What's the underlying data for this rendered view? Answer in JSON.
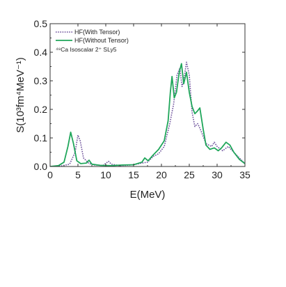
{
  "chart_data": {
    "type": "line",
    "xlabel": "E(MeV)",
    "ylabel": "S(10³fm⁴MeV⁻¹)",
    "xlim": [
      0,
      35
    ],
    "ylim": [
      0,
      0.5
    ],
    "xticks": [
      "0",
      "5",
      "10",
      "15",
      "20",
      "25",
      "30",
      "35"
    ],
    "yticks": [
      "0.0",
      "0.1",
      "0.2",
      "0.3",
      "0.4",
      "0.5"
    ],
    "legend_position": "top-left",
    "annotation": "⁴⁸Ca  Isoscalar 2⁺     SLy5",
    "series": [
      {
        "name": "HF(With Tensor)",
        "color": "#6b4f9a",
        "style": "dotted",
        "points": [
          [
            0,
            0.0
          ],
          [
            2,
            0.002
          ],
          [
            3.5,
            0.008
          ],
          [
            4.5,
            0.05
          ],
          [
            5.0,
            0.11
          ],
          [
            5.4,
            0.09
          ],
          [
            6.0,
            0.03
          ],
          [
            7.0,
            0.01
          ],
          [
            8.0,
            0.005
          ],
          [
            9.5,
            0.004
          ],
          [
            10.5,
            0.018
          ],
          [
            11.0,
            0.008
          ],
          [
            12.5,
            0.003
          ],
          [
            14.5,
            0.005
          ],
          [
            16.0,
            0.01
          ],
          [
            17.5,
            0.015
          ],
          [
            18.5,
            0.035
          ],
          [
            19.5,
            0.045
          ],
          [
            20.5,
            0.07
          ],
          [
            21.5,
            0.15
          ],
          [
            22.2,
            0.22
          ],
          [
            22.8,
            0.32
          ],
          [
            23.3,
            0.345
          ],
          [
            23.7,
            0.28
          ],
          [
            24.0,
            0.3
          ],
          [
            24.5,
            0.365
          ],
          [
            25.0,
            0.32
          ],
          [
            25.5,
            0.19
          ],
          [
            26.0,
            0.14
          ],
          [
            26.5,
            0.15
          ],
          [
            27.0,
            0.13
          ],
          [
            28.0,
            0.08
          ],
          [
            29.0,
            0.07
          ],
          [
            29.5,
            0.085
          ],
          [
            30.0,
            0.07
          ],
          [
            31.0,
            0.055
          ],
          [
            32.0,
            0.07
          ],
          [
            33.0,
            0.05
          ],
          [
            34.0,
            0.03
          ],
          [
            35,
            0.01
          ]
        ]
      },
      {
        "name": "HF(Without Tensor)",
        "color": "#1fa65a",
        "style": "solid",
        "points": [
          [
            0,
            0.0
          ],
          [
            1.5,
            0.003
          ],
          [
            2.5,
            0.015
          ],
          [
            3.2,
            0.07
          ],
          [
            3.7,
            0.12
          ],
          [
            4.2,
            0.08
          ],
          [
            4.8,
            0.02
          ],
          [
            5.5,
            0.01
          ],
          [
            6.5,
            0.012
          ],
          [
            7.0,
            0.022
          ],
          [
            7.5,
            0.008
          ],
          [
            9.0,
            0.004
          ],
          [
            11.0,
            0.003
          ],
          [
            13.0,
            0.005
          ],
          [
            15.0,
            0.006
          ],
          [
            16.5,
            0.015
          ],
          [
            17.0,
            0.03
          ],
          [
            17.6,
            0.02
          ],
          [
            18.5,
            0.04
          ],
          [
            19.5,
            0.06
          ],
          [
            20.5,
            0.09
          ],
          [
            21.2,
            0.16
          ],
          [
            21.6,
            0.26
          ],
          [
            21.9,
            0.315
          ],
          [
            22.3,
            0.24
          ],
          [
            22.7,
            0.26
          ],
          [
            23.2,
            0.33
          ],
          [
            23.6,
            0.36
          ],
          [
            24.0,
            0.29
          ],
          [
            24.5,
            0.33
          ],
          [
            25.0,
            0.26
          ],
          [
            25.5,
            0.21
          ],
          [
            26.0,
            0.185
          ],
          [
            26.5,
            0.195
          ],
          [
            26.9,
            0.205
          ],
          [
            27.5,
            0.13
          ],
          [
            28.0,
            0.075
          ],
          [
            28.7,
            0.06
          ],
          [
            29.5,
            0.065
          ],
          [
            30.2,
            0.055
          ],
          [
            30.8,
            0.065
          ],
          [
            31.6,
            0.085
          ],
          [
            32.3,
            0.075
          ],
          [
            33.0,
            0.05
          ],
          [
            34.0,
            0.025
          ],
          [
            35,
            0.01
          ]
        ]
      }
    ]
  }
}
